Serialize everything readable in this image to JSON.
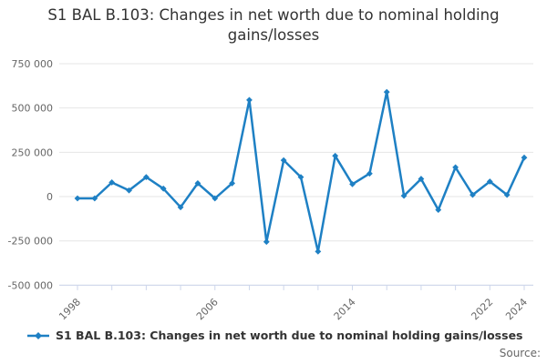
{
  "title": "S1 BAL B.103: Changes in net worth due to nominal holding gains/losses",
  "legend": {
    "label": "S1 BAL B.103: Changes in net worth due to nominal holding gains/losses",
    "marker": "line-with-diamond"
  },
  "source_label": "Source:",
  "colors": {
    "series": "#1e80c4",
    "grid": "#e6e6e6",
    "axis": "#ccd6eb",
    "tick_label": "#666666",
    "title_text": "#333333",
    "legend_text": "#333333",
    "source_text": "#666666"
  },
  "chart_data": {
    "type": "line",
    "title": "S1 BAL B.103: Changes in net worth due to nominal holding gains/losses",
    "x": [
      1998,
      1999,
      2000,
      2001,
      2002,
      2003,
      2004,
      2005,
      2006,
      2007,
      2008,
      2009,
      2010,
      2011,
      2012,
      2013,
      2014,
      2015,
      2016,
      2017,
      2018,
      2019,
      2020,
      2021,
      2022,
      2023,
      2024
    ],
    "series": [
      {
        "name": "S1 BAL B.103: Changes in net worth due to nominal holding gains/losses",
        "values": [
          -10000,
          -10000,
          80000,
          35000,
          110000,
          45000,
          -60000,
          75000,
          -10000,
          75000,
          545000,
          -255000,
          205000,
          110000,
          -310000,
          230000,
          70000,
          130000,
          590000,
          5000,
          100000,
          -75000,
          165000,
          10000,
          85000,
          10000,
          220000
        ]
      }
    ],
    "xlabel": "",
    "ylabel": "",
    "ylim": [
      -500000,
      750000
    ],
    "yticks": [
      750000,
      500000,
      250000,
      0,
      -250000,
      -500000
    ],
    "ytick_labels": [
      "750 000",
      "500 000",
      "250 000",
      "0",
      "-250 000",
      "-500 000"
    ],
    "xticks_every_years": 2,
    "xtick_range": [
      1998,
      2024
    ],
    "xtick_labeled_years": [
      "1998",
      "2006",
      "2014",
      "2022",
      "2024"
    ],
    "xtick_label_rotation": -45,
    "grid": true,
    "legend_position": "bottom-left"
  }
}
